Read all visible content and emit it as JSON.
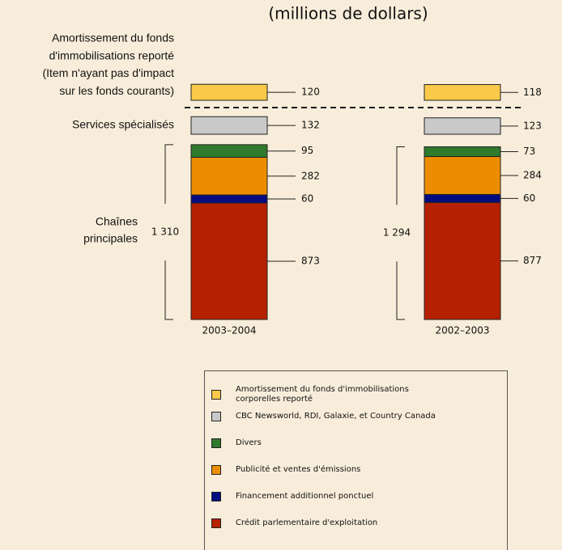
{
  "chart_data": {
    "type": "bar",
    "title": "(millions de dollars)",
    "categories": [
      "2003–2004",
      "2002–2003"
    ],
    "series": [
      {
        "name": "Crédit parlementaire d'exploitation",
        "color": "#b52100",
        "values": [
          873,
          877
        ]
      },
      {
        "name": "Financement additionnel ponctuel",
        "color": "#000c80",
        "values": [
          60,
          60
        ]
      },
      {
        "name": "Publicité et ventes d'émissions",
        "color": "#ec8d00",
        "values": [
          282,
          284
        ]
      },
      {
        "name": "Divers",
        "color": "#2f7a2c",
        "values": [
          95,
          73
        ]
      },
      {
        "name": "CBC Newsworld, RDI, Galaxie, et Country Canada",
        "color": "#c9c9c9",
        "values": [
          132,
          123
        ]
      },
      {
        "name": "Amortissement du fonds d'immobilisations corporelles reporté",
        "color": "#fbc94a",
        "values": [
          120,
          118
        ]
      }
    ],
    "group_totals": {
      "label": [
        "Chaînes",
        "principales"
      ],
      "values": [
        1310,
        1294
      ],
      "value_labels": [
        "1 310",
        "1 294"
      ]
    },
    "side_labels": {
      "amortization": [
        "Amortissement du fonds",
        "d'immobilisations reporté",
        "(Item n'ayant pas d'impact",
        "sur les fonds courants)"
      ],
      "specialty": "Services spécialisés"
    }
  }
}
